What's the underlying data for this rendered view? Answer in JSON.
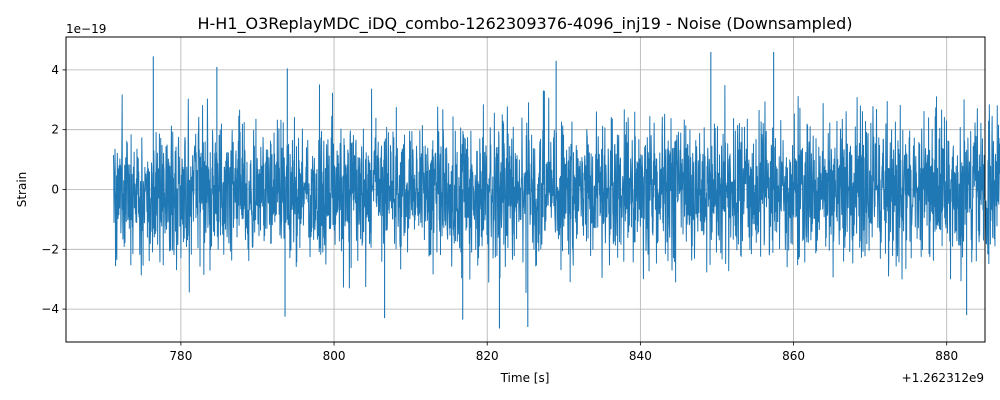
{
  "chart_data": {
    "type": "line",
    "title": "H-H1_O3ReplayMDC_iDQ_combo-1262309376-4096_inj19 - Noise (Downsampled)",
    "xlabel": "Time [s]",
    "ylabel": "Strain",
    "x_offset_label": "+1.262312e9",
    "y_scale_label": "1e−19",
    "xlim": [
      765,
      885
    ],
    "ylim": [
      -5.1,
      5.1
    ],
    "x_ticks": [
      780,
      800,
      820,
      840,
      860,
      880
    ],
    "x_tick_labels": [
      "780",
      "800",
      "820",
      "840",
      "860",
      "880"
    ],
    "y_ticks": [
      -4,
      -2,
      0,
      2,
      4
    ],
    "y_tick_labels": [
      "−4",
      "−2",
      "0",
      "2",
      "4"
    ],
    "grid": true,
    "series": [
      {
        "color": "#1f77b4",
        "x_range": [
          771.2,
          891.2
        ],
        "approx_amplitude_1sigma": 1.0,
        "approx_min": -4.6,
        "approx_max": 4.6,
        "peaks": [
          {
            "x": 776.4,
            "y": 4.45
          },
          {
            "x": 784.7,
            "y": 4.1
          },
          {
            "x": 793.9,
            "y": 4.05
          },
          {
            "x": 829.0,
            "y": 4.3
          },
          {
            "x": 849.2,
            "y": 4.6
          },
          {
            "x": 857.4,
            "y": 4.6
          }
        ],
        "troughs": [
          {
            "x": 793.6,
            "y": -4.25
          },
          {
            "x": 806.6,
            "y": -4.3
          },
          {
            "x": 816.8,
            "y": -4.35
          },
          {
            "x": 821.6,
            "y": -4.65
          },
          {
            "x": 825.3,
            "y": -4.6
          },
          {
            "x": 882.6,
            "y": -4.2
          }
        ]
      }
    ]
  }
}
